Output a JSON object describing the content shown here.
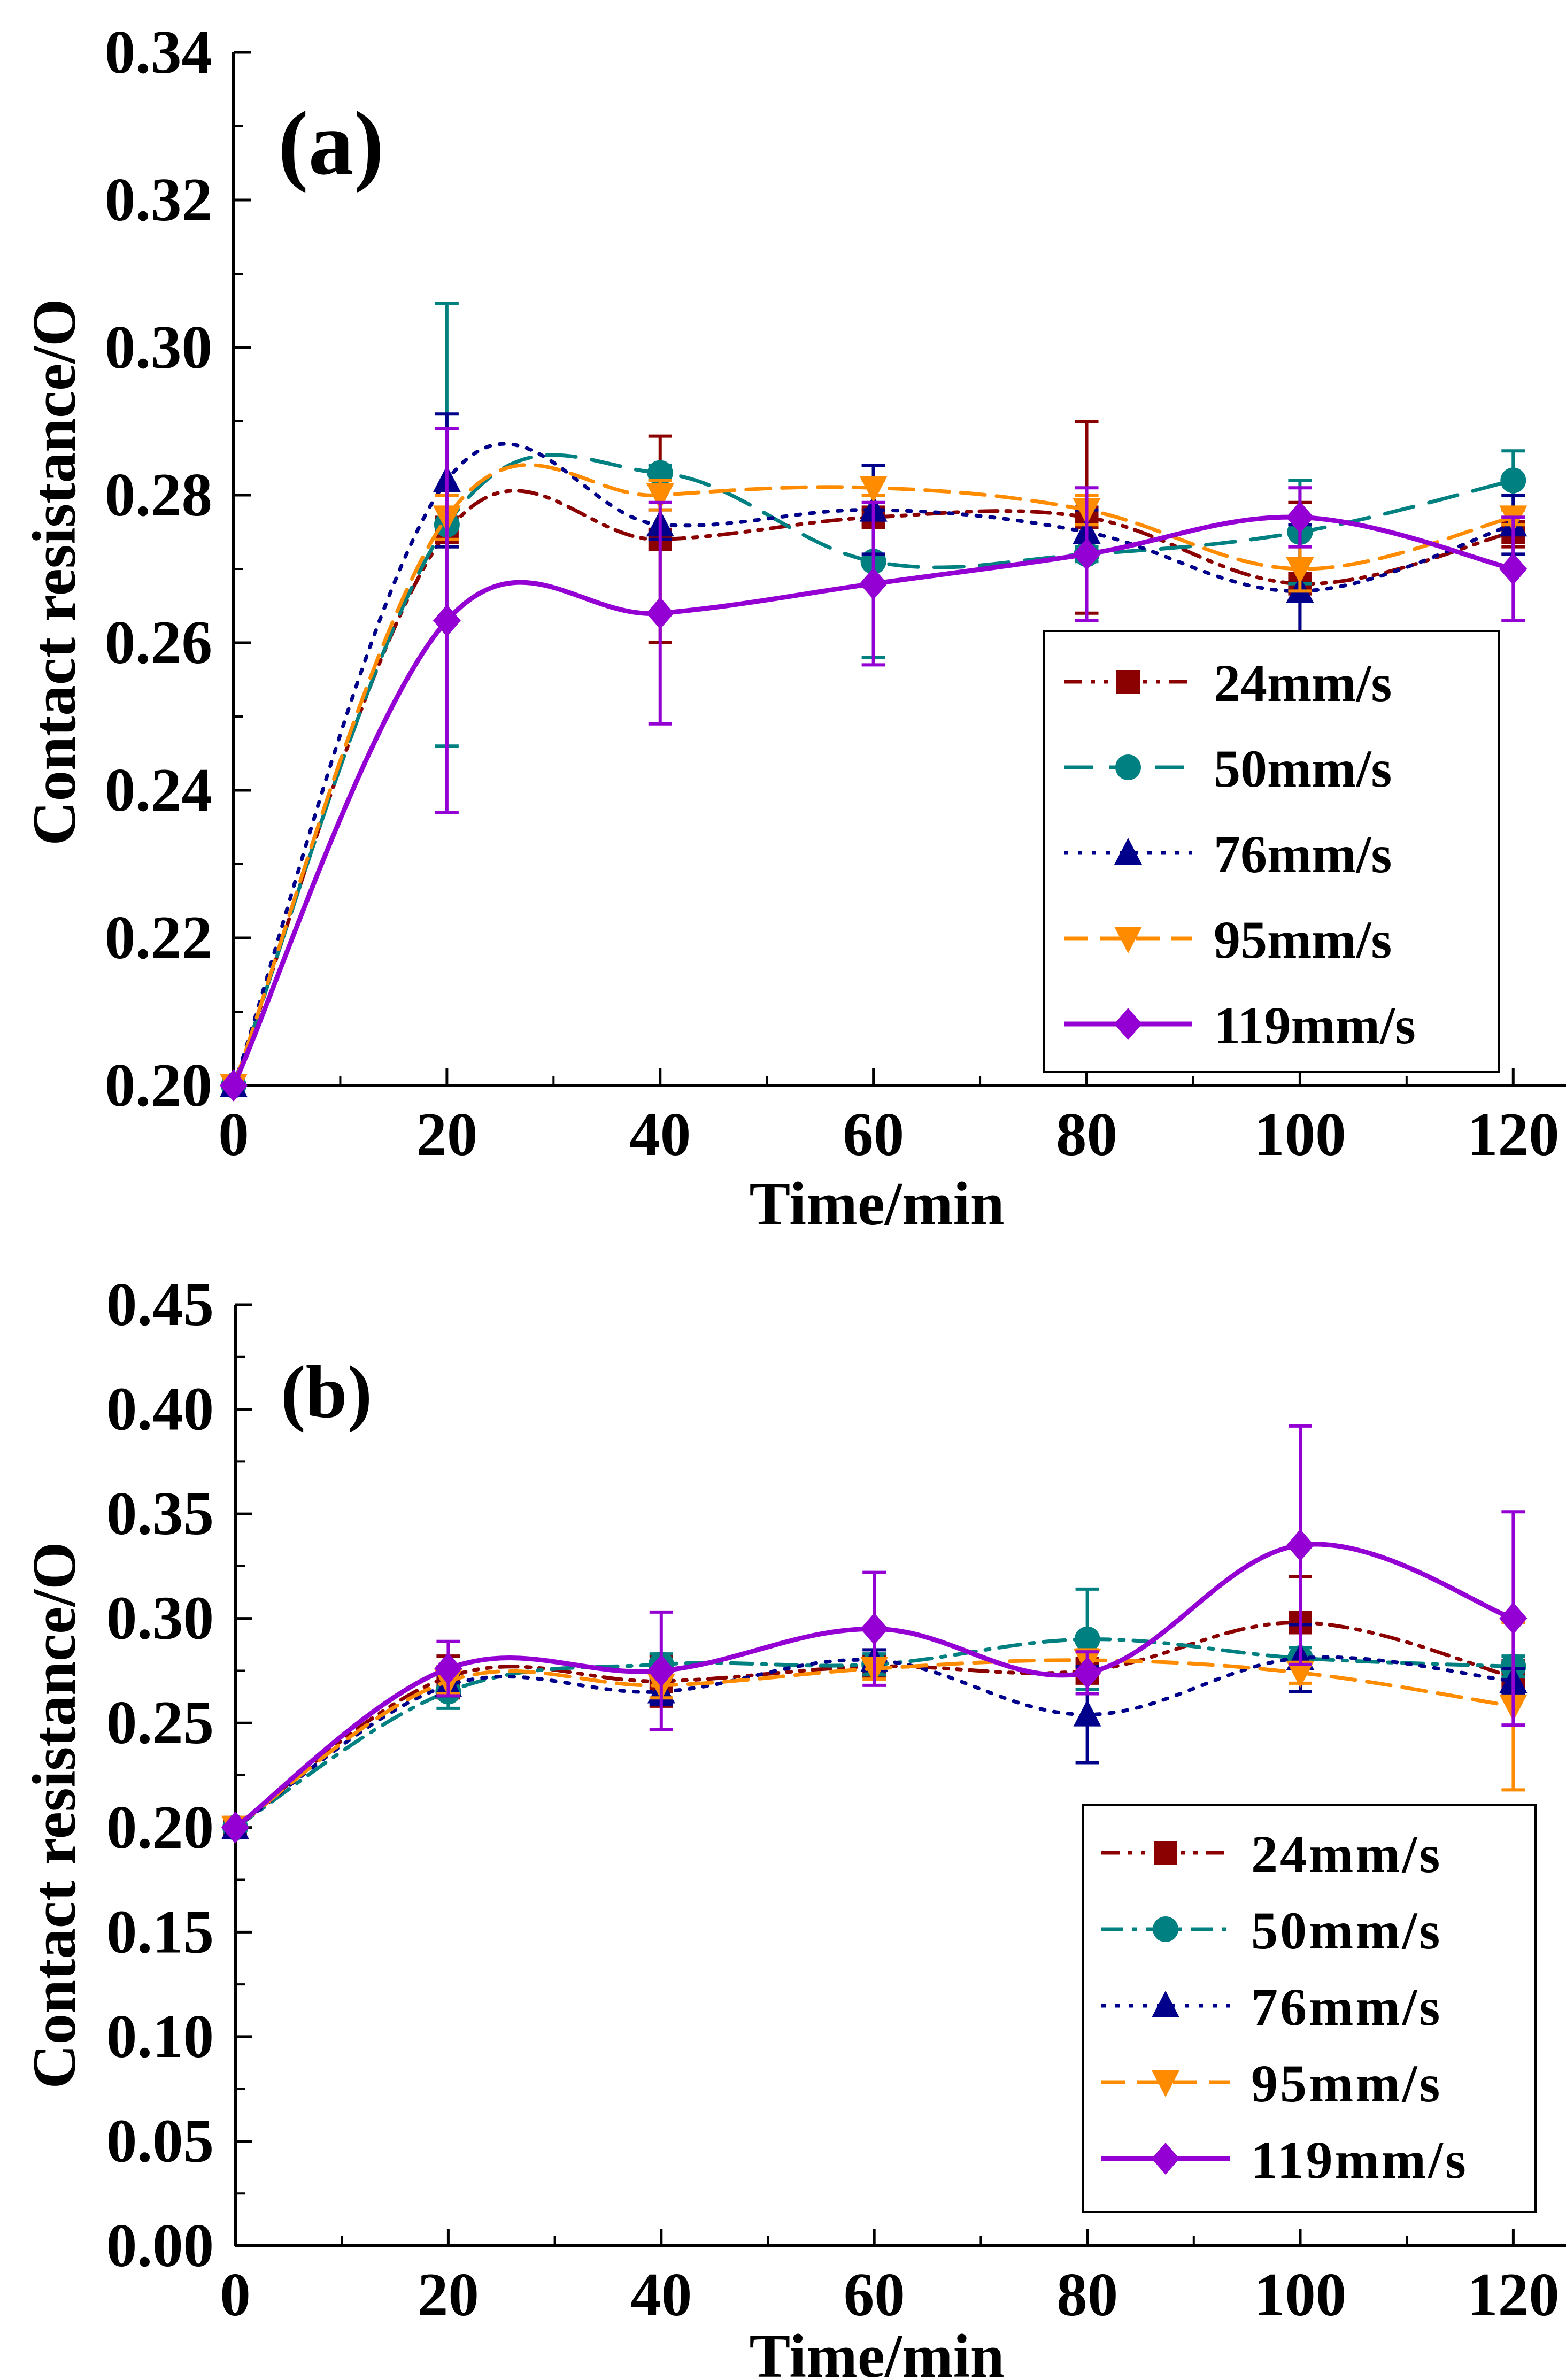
{
  "chart_data": [
    {
      "type": "line",
      "panel_label": "(a)",
      "xlabel": "Time/min",
      "ylabel": "Contact resistance/O",
      "xlim": [
        0,
        125
      ],
      "ylim": [
        0.2,
        0.34
      ],
      "xticks": [
        0,
        20,
        40,
        60,
        80,
        100,
        120
      ],
      "yticks": [
        0.2,
        0.22,
        0.24,
        0.26,
        0.28,
        0.3,
        0.32,
        0.34
      ],
      "xtick_labels": [
        "0",
        "20",
        "40",
        "60",
        "80",
        "100",
        "120"
      ],
      "ytick_labels": [
        "0.20",
        "0.22",
        "0.24",
        "0.26",
        "0.28",
        "0.30",
        "0.32",
        "0.34"
      ],
      "legend_position": "lower-right",
      "x": [
        0,
        20,
        40,
        60,
        80,
        100,
        120
      ],
      "series": [
        {
          "name": "24mm/s",
          "color": "#8b0000",
          "dash": "dashdotdot",
          "marker": "square",
          "values": [
            0.2,
            0.275,
            0.274,
            0.277,
            0.277,
            0.268,
            0.275
          ],
          "errors": [
            0,
            0.002,
            0.014,
            0.001,
            0.013,
            0.011,
            0.002
          ]
        },
        {
          "name": "50mm/s",
          "color": "#008080",
          "dash": "dash",
          "marker": "circle",
          "values": [
            0.2,
            0.276,
            0.283,
            0.271,
            0.272,
            0.275,
            0.282
          ],
          "errors": [
            0,
            0.03,
            0.001,
            0.013,
            0.001,
            0.007,
            0.004
          ]
        },
        {
          "name": "76mm/s",
          "color": "#00008b",
          "dash": "dot",
          "marker": "triangle-up",
          "values": [
            0.2,
            0.282,
            0.276,
            0.278,
            0.275,
            0.267,
            0.276
          ],
          "errors": [
            0,
            0.009,
            0.002,
            0.006,
            0.003,
            0.009,
            0.004
          ]
        },
        {
          "name": "95mm/s",
          "color": "#ff8c00",
          "dash": "longdash",
          "marker": "triangle-down",
          "values": [
            0.2,
            0.277,
            0.28,
            0.281,
            0.278,
            0.27,
            0.277
          ],
          "errors": [
            0,
            0.003,
            0.002,
            0.001,
            0.002,
            0.003,
            0.001
          ]
        },
        {
          "name": "119mm/s",
          "color": "#9400d3",
          "dash": "solid",
          "marker": "diamond",
          "values": [
            0.2,
            0.263,
            0.264,
            0.268,
            0.272,
            0.277,
            0.27
          ],
          "errors": [
            0,
            0.026,
            0.015,
            0.011,
            0.009,
            0.004,
            0.007
          ]
        }
      ]
    },
    {
      "type": "line",
      "panel_label": "(b)",
      "xlabel": "Time/min",
      "ylabel": "Contact resistance/O",
      "xlim": [
        0,
        125
      ],
      "ylim": [
        0,
        0.45
      ],
      "xticks": [
        0,
        20,
        40,
        60,
        80,
        100,
        120
      ],
      "yticks": [
        0,
        0.05,
        0.1,
        0.15,
        0.2,
        0.25,
        0.3,
        0.35,
        0.4,
        0.45
      ],
      "xtick_labels": [
        "0",
        "20",
        "40",
        "60",
        "80",
        "100",
        "120"
      ],
      "ytick_labels": [
        "0.00",
        "0.05",
        "0.10",
        "0.15",
        "0.20",
        "0.25",
        "0.30",
        "0.35",
        "0.40",
        "0.45"
      ],
      "legend_position": "lower-right",
      "x": [
        0,
        20,
        40,
        60,
        80,
        100,
        120
      ],
      "series": [
        {
          "name": "24mm/s",
          "color": "#8b0000",
          "dash": "dashdotdot",
          "marker": "square",
          "values": [
            0.2,
            0.272,
            0.27,
            0.277,
            0.275,
            0.298,
            0.272
          ],
          "errors": [
            0,
            0.01,
            0.012,
            0.005,
            0.006,
            0.022,
            0.008
          ]
        },
        {
          "name": "50mm/s",
          "color": "#008080",
          "dash": "dashdot",
          "marker": "circle",
          "values": [
            0.2,
            0.265,
            0.278,
            0.278,
            0.29,
            0.281,
            0.277
          ],
          "errors": [
            0,
            0.008,
            0.005,
            0.005,
            0.024,
            0.005,
            0.005
          ]
        },
        {
          "name": "76mm/s",
          "color": "#00008b",
          "dash": "dot",
          "marker": "triangle-up",
          "values": [
            0.2,
            0.268,
            0.265,
            0.28,
            0.254,
            0.281,
            0.27
          ],
          "errors": [
            0,
            0.005,
            0.006,
            0.005,
            0.023,
            0.016,
            0.006
          ]
        },
        {
          "name": "95mm/s",
          "color": "#ff8c00",
          "dash": "longdash",
          "marker": "triangle-down",
          "values": [
            0.2,
            0.27,
            0.268,
            0.276,
            0.28,
            0.274,
            0.258
          ],
          "errors": [
            0,
            0.006,
            0.006,
            0.005,
            0.005,
            0.005,
            0.04
          ]
        },
        {
          "name": "119mm/s",
          "color": "#9400d3",
          "dash": "solid",
          "marker": "diamond",
          "values": [
            0.2,
            0.276,
            0.275,
            0.295,
            0.274,
            0.335,
            0.3
          ],
          "errors": [
            0,
            0.013,
            0.028,
            0.027,
            0.01,
            0.057,
            0.051
          ]
        }
      ]
    }
  ]
}
